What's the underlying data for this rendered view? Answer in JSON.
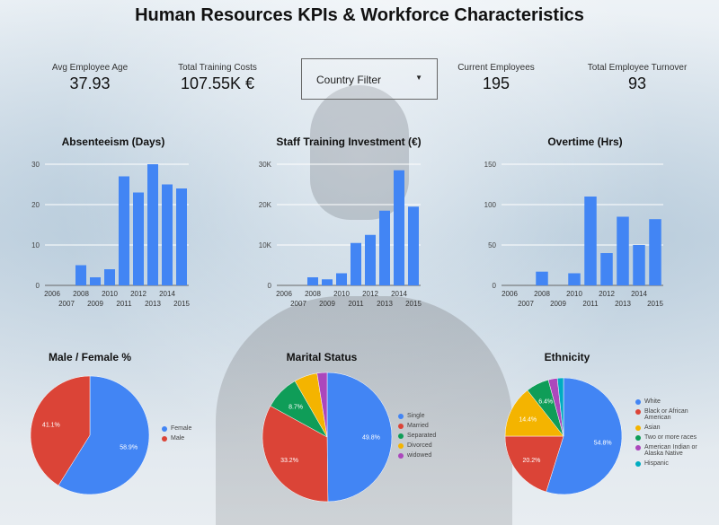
{
  "title": "Human Resources KPIs & Workforce Characteristics",
  "kpis": {
    "avg_age": {
      "label": "Avg Employee Age",
      "value": "37.93"
    },
    "training_costs": {
      "label": "Total Training Costs",
      "value": "107.55K €"
    },
    "current_employees": {
      "label": "Current Employees",
      "value": "195"
    },
    "turnover": {
      "label": "Total Employee Turnover",
      "value": "93"
    }
  },
  "filter": {
    "label": "Country Filter"
  },
  "colors": {
    "blue": "#4285f4",
    "red": "#db4437",
    "yellow": "#f4b400",
    "green": "#0f9d58",
    "purple": "#ab47bc",
    "teal": "#00acc1"
  },
  "chart_data": [
    {
      "id": "absenteeism",
      "type": "bar",
      "title": "Absenteeism (Days)",
      "categories": [
        "2006",
        "2007",
        "2008",
        "2009",
        "2010",
        "2011",
        "2012",
        "2013",
        "2014",
        "2015"
      ],
      "values": [
        0,
        0,
        5,
        2,
        4,
        27,
        23,
        30,
        25,
        24
      ],
      "ylim": [
        0,
        30
      ],
      "yticks": [
        0,
        10,
        20,
        30
      ],
      "ytick_labels": [
        "0",
        "10",
        "20",
        "30"
      ]
    },
    {
      "id": "training",
      "type": "bar",
      "title": "Staff Training Investment (€)",
      "categories": [
        "2006",
        "2007",
        "2008",
        "2009",
        "2010",
        "2011",
        "2012",
        "2013",
        "2014",
        "2015"
      ],
      "values": [
        0,
        0,
        2000,
        1500,
        3000,
        10500,
        12500,
        18500,
        28500,
        19500
      ],
      "ylim": [
        0,
        30000
      ],
      "yticks": [
        0,
        10000,
        20000,
        30000
      ],
      "ytick_labels": [
        "0",
        "10K",
        "20K",
        "30K"
      ]
    },
    {
      "id": "overtime",
      "type": "bar",
      "title": "Overtime (Hrs)",
      "categories": [
        "2006",
        "2007",
        "2008",
        "2009",
        "2010",
        "2011",
        "2012",
        "2013",
        "2014",
        "2015"
      ],
      "values": [
        0,
        0,
        17,
        0,
        15,
        110,
        40,
        85,
        50,
        82
      ],
      "ylim": [
        0,
        150
      ],
      "yticks": [
        0,
        50,
        100,
        150
      ],
      "ytick_labels": [
        "0",
        "50",
        "100",
        "150"
      ]
    },
    {
      "id": "gender",
      "type": "pie",
      "title": "Male / Female %",
      "labels": [
        "Female",
        "Male"
      ],
      "values": [
        58.9,
        41.1
      ],
      "value_labels": [
        "58.9%",
        "41.1%"
      ],
      "colors": [
        "#4285f4",
        "#db4437"
      ]
    },
    {
      "id": "marital",
      "type": "pie",
      "title": "Marital Status",
      "labels": [
        "Single",
        "Married",
        "Separated",
        "Divorced",
        "widowed"
      ],
      "values": [
        49.8,
        33.2,
        8.7,
        5.8,
        2.5
      ],
      "value_labels": [
        "49.8%",
        "33.2%",
        "8.7%",
        "",
        ""
      ],
      "colors": [
        "#4285f4",
        "#db4437",
        "#0f9d58",
        "#f4b400",
        "#ab47bc"
      ]
    },
    {
      "id": "ethnicity",
      "type": "pie",
      "title": "Ethnicity",
      "labels": [
        "White",
        "Black or African American",
        "Asian",
        "Two or more races",
        "American Indian or Alaska Native",
        "Hispanic"
      ],
      "values": [
        54.8,
        20.2,
        14.4,
        6.4,
        2.5,
        1.7
      ],
      "value_labels": [
        "54.8%",
        "20.2%",
        "14.4%",
        "6.4%",
        "",
        ""
      ],
      "colors": [
        "#4285f4",
        "#db4437",
        "#f4b400",
        "#0f9d58",
        "#ab47bc",
        "#00acc1"
      ]
    }
  ]
}
